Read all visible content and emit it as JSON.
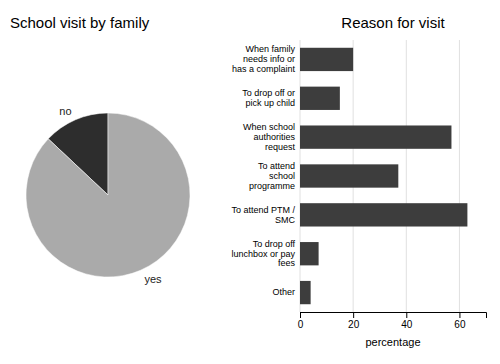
{
  "chart_data": [
    {
      "type": "pie",
      "title": "School visit by family",
      "categories": [
        "no",
        "yes"
      ],
      "values": [
        13,
        87
      ],
      "colors": [
        "#2d2d2d",
        "#aaaaaa"
      ]
    },
    {
      "type": "bar",
      "orientation": "horizontal",
      "title": "Reason for visit",
      "categories": [
        "When family\nneeds info or\nhas a complaint",
        "To drop off or\npick up child",
        "When school\nauthorities\nrequest",
        "To attend\nschool\nprogramme",
        "To attend PTM /\nSMC",
        "To drop off\nlunchbox or pay\nfees",
        "Other"
      ],
      "values": [
        20,
        15,
        57,
        37,
        63,
        7,
        4
      ],
      "color": "#3d3d3d",
      "xlabel": "percentage",
      "xlim": [
        0,
        70
      ],
      "xticks": [
        0,
        20,
        40,
        60
      ],
      "grid": true
    }
  ]
}
